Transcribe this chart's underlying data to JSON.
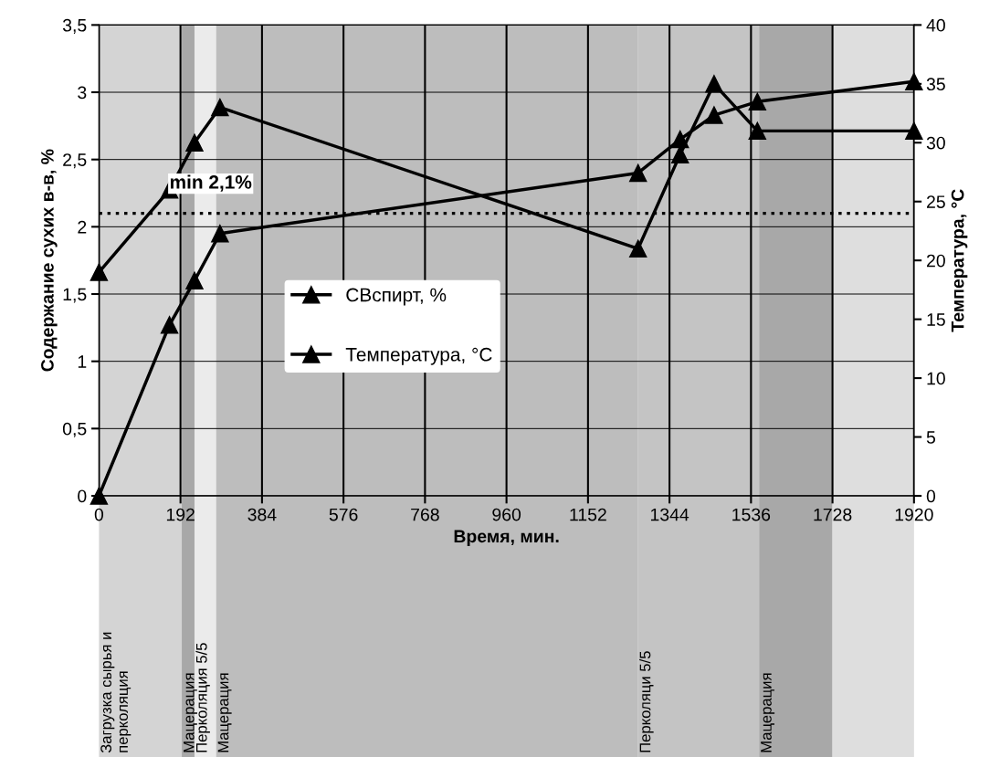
{
  "chart_data": {
    "type": "line",
    "xlabel": "Время, мин.",
    "ylabel": "Содержание сухих в-в, %",
    "y2label": "Температура, °С",
    "x": [
      0,
      166,
      225,
      285,
      1270,
      1369,
      1449,
      1551,
      1920
    ],
    "series": [
      {
        "name": "СВспирт, %",
        "color": "#000000",
        "marker": "triangle",
        "values": [
          0,
          1.27,
          1.6,
          1.95,
          2.4,
          2.65,
          2.83,
          2.93,
          3.08
        ]
      },
      {
        "name": "Температура, °С",
        "color": "#000000",
        "marker": "triangle",
        "axis": "y2",
        "values": [
          19,
          26,
          30,
          33,
          21,
          29,
          35,
          31,
          31
        ]
      }
    ],
    "xlim": [
      0,
      1920
    ],
    "xticks": [
      0,
      192,
      384,
      576,
      768,
      960,
      1152,
      1344,
      1536,
      1728,
      1920
    ],
    "ylim": [
      0,
      3.5
    ],
    "yticks": [
      0,
      {
        "value": 0.5,
        "label": "0,5"
      },
      1,
      {
        "value": 1.5,
        "label": "1,5"
      },
      2,
      {
        "value": 2.5,
        "label": "2,5"
      },
      3,
      {
        "value": 3.5,
        "label": "3,5"
      }
    ],
    "y2lim": [
      0,
      40
    ],
    "y2ticks": [
      0,
      5,
      10,
      15,
      20,
      25,
      30,
      35,
      40
    ],
    "ref_lines": [
      {
        "axis": "y",
        "value": 2.1,
        "label": "min 2,1%",
        "line_style": "dotted",
        "color": "#000000"
      }
    ],
    "bands": [
      {
        "axis": "x",
        "from": 0,
        "to": 195,
        "label": "Загрузка сырья и\nперколяция",
        "color": "#d4d4d4"
      },
      {
        "axis": "x",
        "from": 195,
        "to": 225,
        "label": "Мацерация",
        "color": "#a8a8a8"
      },
      {
        "axis": "x",
        "from": 225,
        "to": 276,
        "label": "Перколяция 5/5",
        "color": "#ebebeb"
      },
      {
        "axis": "x",
        "from": 276,
        "to": 1270,
        "label": "Мацерация",
        "color": "#bdbdbd"
      },
      {
        "axis": "x",
        "from": 1270,
        "to": 1555,
        "label": "Перколяци 5/5",
        "color": "#c4c4c4"
      },
      {
        "axis": "x",
        "from": 1555,
        "to": 1728,
        "label": "Мацерация",
        "color": "#a8a8a8"
      },
      {
        "axis": "x",
        "from": 1728,
        "to": 1920,
        "color": "#dedede"
      }
    ],
    "grid": true,
    "legend": "center",
    "line_style": "solid"
  }
}
